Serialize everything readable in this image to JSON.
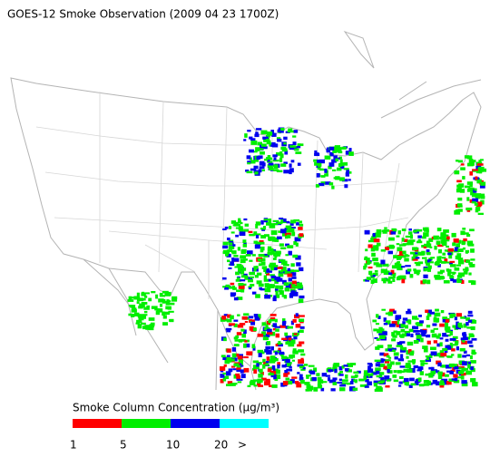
{
  "title": "GOES-12 Smoke Observation (2009 04 23  1700Z)",
  "legend": {
    "title": "Smoke Column Concentration (µg/m³)",
    "colors": [
      "#ff0000",
      "#00ee00",
      "#0000ee",
      "#00ffff"
    ],
    "labels": [
      "1",
      "5",
      "10",
      "20",
      ">"
    ]
  }
}
